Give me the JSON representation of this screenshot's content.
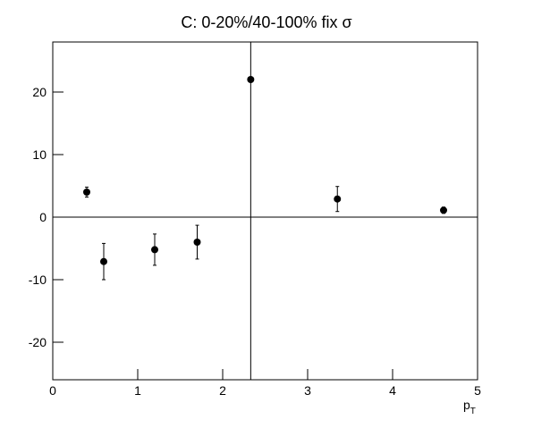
{
  "chart_data": {
    "type": "scatter",
    "title": "C: 0-20%/40-100% fix σ",
    "x_label": {
      "main": "p",
      "sub": "T"
    },
    "series": [
      {
        "color": "#000000",
        "x": [
          0.4,
          0.6,
          1.2,
          1.7,
          2.33,
          3.35,
          4.6
        ],
        "values": [
          4.0,
          -7.1,
          -5.2,
          -4.0,
          22.0,
          2.9,
          1.1
        ],
        "errors": [
          0.8,
          2.9,
          2.5,
          2.7,
          0.3,
          2.0,
          0.5
        ]
      }
    ],
    "xlim": [
      0,
      5
    ],
    "xticks": [
      0,
      1,
      2,
      3,
      4,
      5
    ],
    "ylim": [
      -26,
      28
    ],
    "yticks": [
      -20,
      -10,
      0,
      10,
      20
    ],
    "vline": 2.33,
    "hline": 0
  }
}
